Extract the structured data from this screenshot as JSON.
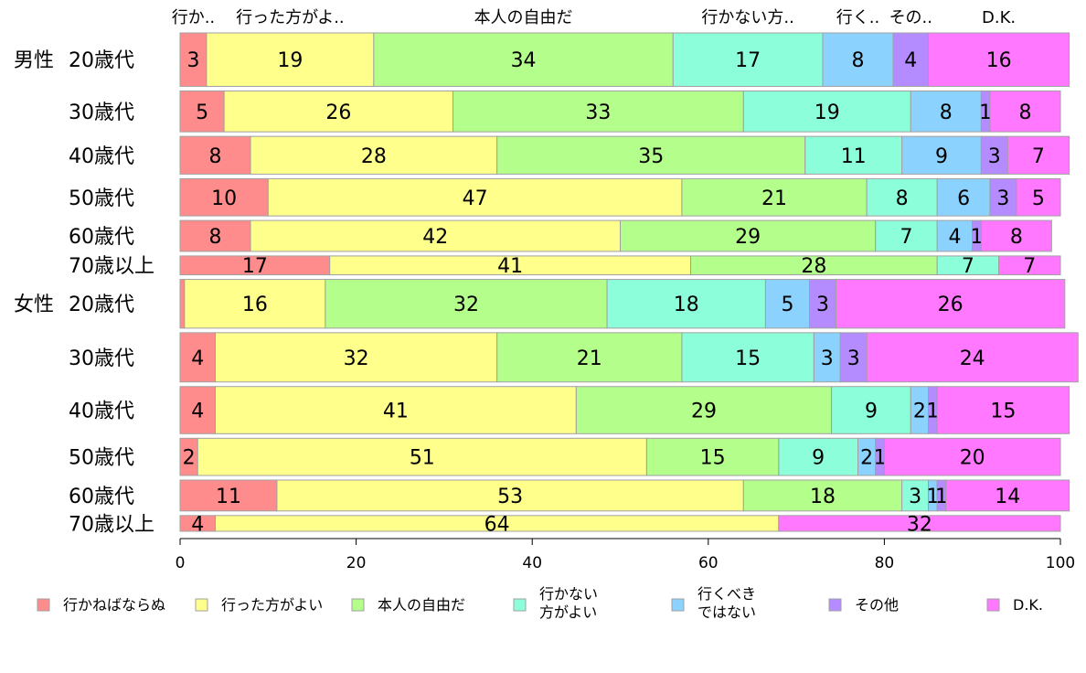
{
  "chart_data": {
    "type": "bar",
    "orientation": "horizontal",
    "stacked": true,
    "top_labels": [
      "行か..",
      "行った方がよ..",
      "本人の自由だ",
      "行かない方..",
      "行く..",
      "その..",
      "D.K."
    ],
    "series": [
      {
        "name": "行かねばならぬ",
        "color": "#ff8c8c",
        "values": [
          3,
          5,
          8,
          10,
          8,
          17,
          0.5,
          4,
          4,
          2,
          11,
          4
        ]
      },
      {
        "name": "行った方がよい",
        "color": "#ffff8c",
        "values": [
          19,
          26,
          28,
          47,
          42,
          41,
          16,
          32,
          41,
          51,
          53,
          64
        ]
      },
      {
        "name": "本人の自由だ",
        "color": "#b4ff8c",
        "values": [
          34,
          33,
          35,
          21,
          29,
          28,
          32,
          21,
          29,
          15,
          18,
          0
        ]
      },
      {
        "name": "行かない\n方がよい",
        "color": "#8cffda",
        "values": [
          17,
          19,
          11,
          8,
          7,
          7,
          18,
          15,
          9,
          9,
          3,
          0
        ]
      },
      {
        "name": "行くべき\nではない",
        "color": "#8cd2ff",
        "values": [
          8,
          8,
          9,
          6,
          4,
          0,
          5,
          3,
          2,
          2,
          1,
          0
        ]
      },
      {
        "name": "その他",
        "color": "#b48cff",
        "values": [
          4,
          1,
          3,
          3,
          1,
          0,
          3,
          3,
          1,
          1,
          1,
          0
        ]
      },
      {
        "name": "D.K.",
        "color": "#ff78ff",
        "values": [
          16,
          8,
          7,
          5,
          8,
          7,
          26,
          24,
          15,
          20,
          14,
          32
        ]
      }
    ],
    "data_labels": [
      [
        "3",
        "5",
        "8",
        "10",
        "8",
        "17",
        "",
        "4",
        "4",
        "2",
        "11",
        "4"
      ],
      [
        "19",
        "26",
        "28",
        "47",
        "42",
        "41",
        "16",
        "32",
        "41",
        "51",
        "53",
        "64"
      ],
      [
        "34",
        "33",
        "35",
        "21",
        "29",
        "28",
        "32",
        "21",
        "29",
        "15",
        "18",
        ""
      ],
      [
        "17",
        "19",
        "11",
        "8",
        "7",
        "7",
        "18",
        "15",
        "9",
        "9",
        "3",
        ""
      ],
      [
        "8",
        "8",
        "9",
        "6",
        "4",
        "",
        "5",
        "3",
        "2",
        "2",
        "1",
        ""
      ],
      [
        "4",
        "1",
        "3",
        "3",
        "1",
        "",
        "3",
        "3",
        "1",
        "1",
        "1",
        ""
      ],
      [
        "16",
        "8",
        "7",
        "5",
        "8",
        "7",
        "26",
        "24",
        "15",
        "20",
        "14",
        "32"
      ]
    ],
    "rows": [
      {
        "group": "男性",
        "label": "20歳代"
      },
      {
        "group": "",
        "label": "30歳代"
      },
      {
        "group": "",
        "label": "40歳代"
      },
      {
        "group": "",
        "label": "50歳代"
      },
      {
        "group": "",
        "label": "60歳代"
      },
      {
        "group": "",
        "label": "70歳以上"
      },
      {
        "group": "女性",
        "label": "20歳代"
      },
      {
        "group": "",
        "label": "30歳代"
      },
      {
        "group": "",
        "label": "40歳代"
      },
      {
        "group": "",
        "label": "50歳代"
      },
      {
        "group": "",
        "label": "60歳代"
      },
      {
        "group": "",
        "label": "70歳以上"
      }
    ],
    "row_weights": [
      102,
      78,
      72,
      71,
      59,
      36,
      93,
      94,
      90,
      71,
      59,
      30
    ],
    "xlim": [
      0,
      100
    ],
    "xticks": [
      0,
      20,
      40,
      60,
      80,
      100
    ],
    "legend_position": "bottom",
    "grid": false
  }
}
